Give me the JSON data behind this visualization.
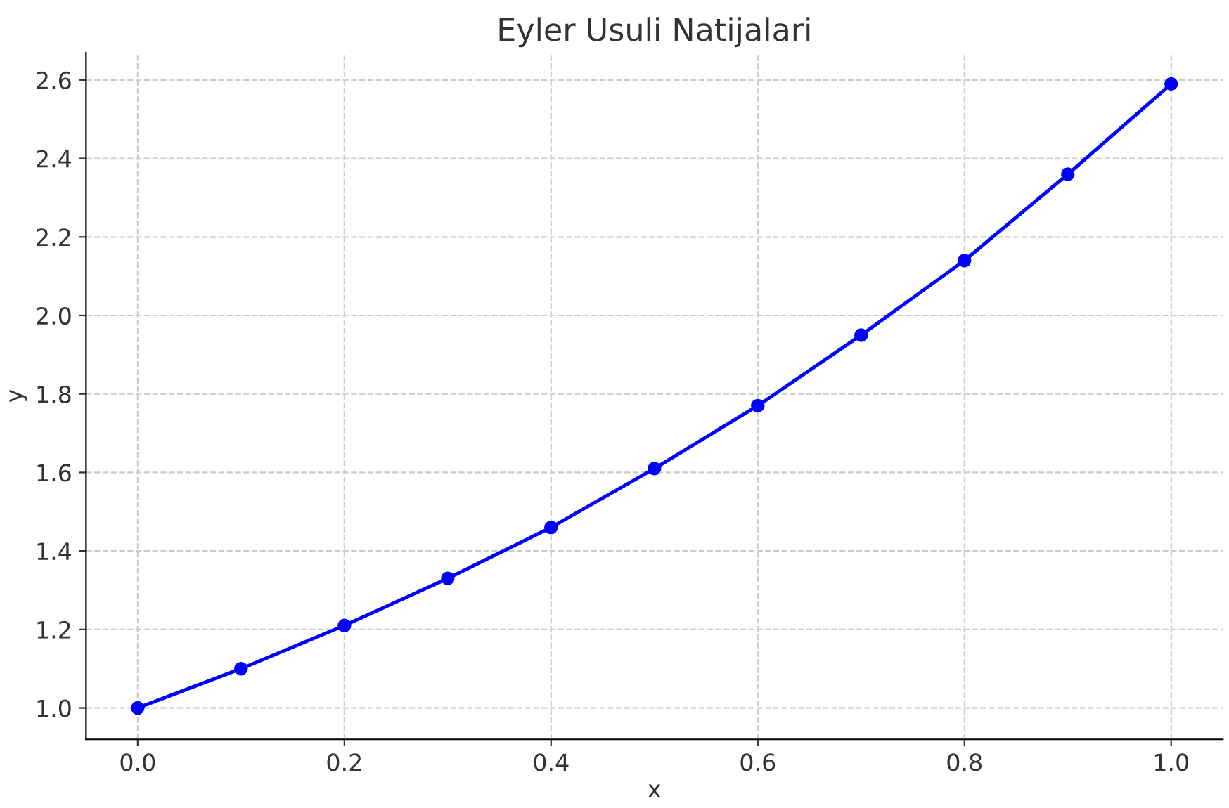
{
  "chart_data": {
    "type": "line",
    "title": "Eyler Usuli Natijalari",
    "xlabel": "x",
    "ylabel": "y",
    "x": [
      0.0,
      0.1,
      0.2,
      0.3,
      0.4,
      0.5,
      0.6,
      0.7,
      0.8,
      0.9,
      1.0
    ],
    "series": [
      {
        "color": "#0000ff",
        "values": [
          1.0,
          1.1,
          1.21,
          1.33,
          1.46,
          1.61,
          1.77,
          1.95,
          2.14,
          2.36,
          2.59
        ]
      }
    ],
    "xlim": [
      -0.05,
      1.05
    ],
    "ylim": [
      0.92,
      2.67
    ],
    "xticks": [
      {
        "value": 0.0,
        "label": "0.0"
      },
      {
        "value": 0.2,
        "label": "0.2"
      },
      {
        "value": 0.4,
        "label": "0.4"
      },
      {
        "value": 0.6,
        "label": "0.6"
      },
      {
        "value": 0.8,
        "label": "0.8"
      },
      {
        "value": 1.0,
        "label": "1.0"
      }
    ],
    "yticks": [
      {
        "value": 1.0,
        "label": "1.0"
      },
      {
        "value": 1.2,
        "label": "1.2"
      },
      {
        "value": 1.4,
        "label": "1.4"
      },
      {
        "value": 1.6,
        "label": "1.6"
      },
      {
        "value": 1.8,
        "label": "1.8"
      },
      {
        "value": 2.0,
        "label": "2.0"
      },
      {
        "value": 2.2,
        "label": "2.2"
      },
      {
        "value": 2.4,
        "label": "2.4"
      },
      {
        "value": 2.6,
        "label": "2.6"
      }
    ],
    "grid": true,
    "marker": "circle",
    "line_style": "solid"
  }
}
